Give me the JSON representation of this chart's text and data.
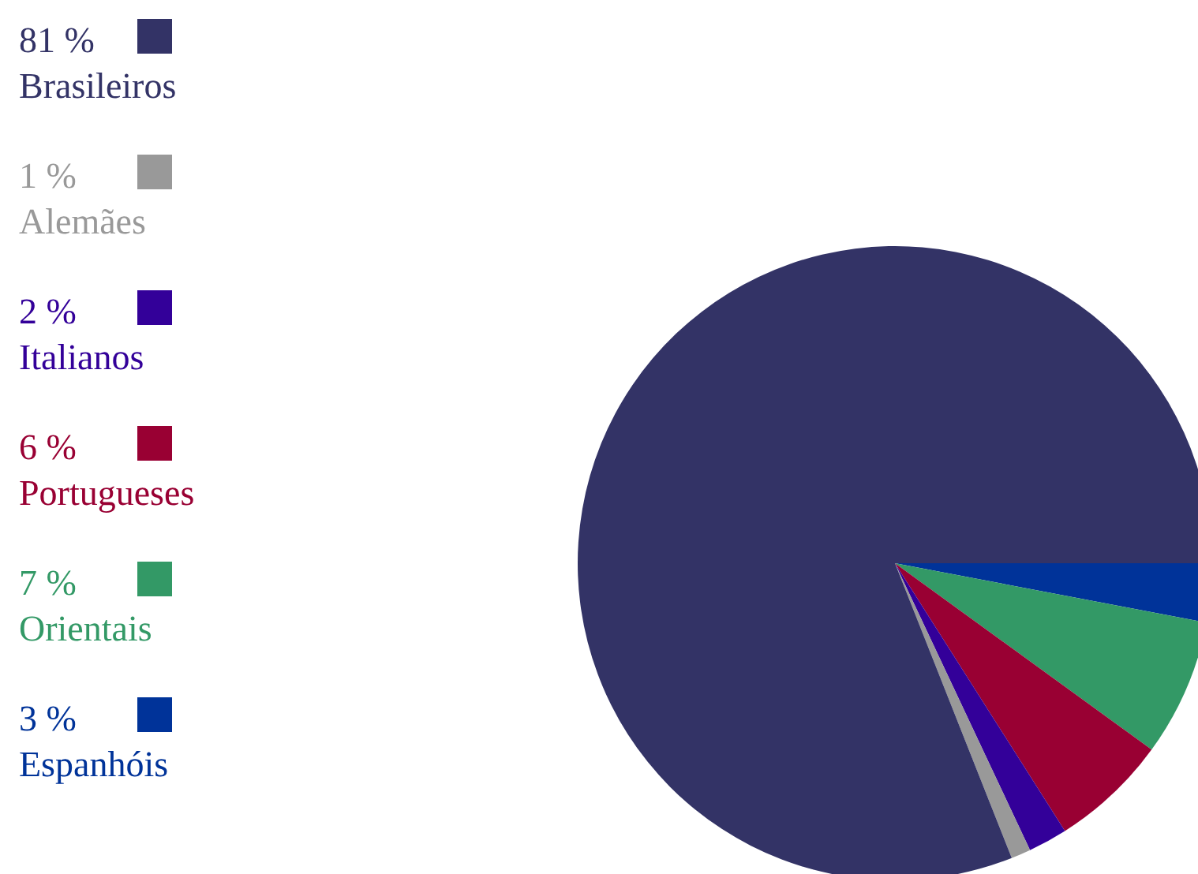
{
  "chart_data": {
    "type": "pie",
    "categories": [
      "Brasileiros",
      "Alemães",
      "Italianos",
      "Portugueses",
      "Orientais",
      "Espanhóis"
    ],
    "values": [
      81,
      1,
      2,
      6,
      7,
      3
    ],
    "value_labels": [
      "81 %",
      "1 %",
      "2 %",
      "6 %",
      "7 %",
      "3 %"
    ],
    "colors": [
      "#333366",
      "#999999",
      "#330099",
      "#990033",
      "#339966",
      "#003399"
    ],
    "legend": "left"
  }
}
